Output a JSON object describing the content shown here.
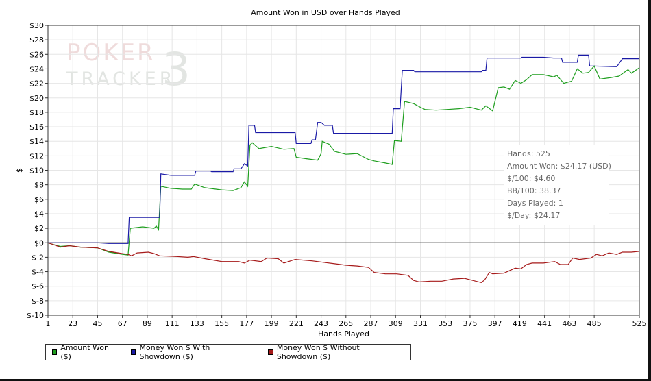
{
  "chart_data": {
    "type": "line",
    "title": "Amount Won in USD over Hands Played",
    "xlabel": "Hands Played",
    "ylabel": "$",
    "xlim": [
      1,
      525
    ],
    "ylim": [
      -10,
      30
    ],
    "x_ticks": [
      1,
      23,
      45,
      67,
      89,
      111,
      133,
      155,
      177,
      199,
      221,
      243,
      265,
      287,
      309,
      331,
      353,
      375,
      397,
      419,
      441,
      463,
      485,
      525
    ],
    "y_ticks": [
      30,
      28,
      26,
      24,
      22,
      20,
      18,
      16,
      14,
      12,
      10,
      8,
      6,
      4,
      2,
      0,
      -2,
      -4,
      -6,
      -8,
      -10
    ],
    "y_tick_labels": [
      "$30",
      "$28",
      "$26",
      "$24",
      "$22",
      "$20",
      "$18",
      "$16",
      "$14",
      "$12",
      "$10",
      "$8",
      "$6",
      "$4",
      "$2",
      "$0",
      "$-2",
      "$-4",
      "$-6",
      "$-8",
      "$-10"
    ],
    "grid": true,
    "legend_position": "bottom-left",
    "series": [
      {
        "name": "Amount Won ($)",
        "color": "#1e9e1e",
        "points": [
          [
            1,
            0
          ],
          [
            5,
            -0.2
          ],
          [
            12,
            -0.5
          ],
          [
            20,
            -0.4
          ],
          [
            30,
            -0.6
          ],
          [
            45,
            -0.7
          ],
          [
            55,
            -1.3
          ],
          [
            67,
            -1.6
          ],
          [
            72,
            -1.7
          ],
          [
            74,
            2.0
          ],
          [
            85,
            2.2
          ],
          [
            95,
            2.0
          ],
          [
            97,
            2.3
          ],
          [
            99,
            1.8
          ],
          [
            101,
            7.8
          ],
          [
            110,
            7.5
          ],
          [
            120,
            7.4
          ],
          [
            128,
            7.4
          ],
          [
            131,
            8.1
          ],
          [
            140,
            7.6
          ],
          [
            155,
            7.3
          ],
          [
            165,
            7.2
          ],
          [
            172,
            7.6
          ],
          [
            175,
            8.4
          ],
          [
            178,
            7.8
          ],
          [
            180,
            13.5
          ],
          [
            182,
            13.8
          ],
          [
            188,
            13.0
          ],
          [
            199,
            13.3
          ],
          [
            210,
            12.9
          ],
          [
            219,
            13.0
          ],
          [
            221,
            11.8
          ],
          [
            230,
            11.6
          ],
          [
            240,
            11.4
          ],
          [
            243,
            12.3
          ],
          [
            244,
            14.0
          ],
          [
            250,
            13.6
          ],
          [
            255,
            12.6
          ],
          [
            265,
            12.2
          ],
          [
            275,
            12.3
          ],
          [
            285,
            11.5
          ],
          [
            290,
            11.3
          ],
          [
            300,
            11.0
          ],
          [
            306,
            10.8
          ],
          [
            308,
            14.1
          ],
          [
            314,
            14.0
          ],
          [
            317,
            19.5
          ],
          [
            325,
            19.2
          ],
          [
            331,
            18.7
          ],
          [
            335,
            18.4
          ],
          [
            345,
            18.3
          ],
          [
            355,
            18.4
          ],
          [
            365,
            18.5
          ],
          [
            375,
            18.7
          ],
          [
            385,
            18.3
          ],
          [
            389,
            18.9
          ],
          [
            395,
            18.2
          ],
          [
            400,
            21.4
          ],
          [
            405,
            21.5
          ],
          [
            410,
            21.2
          ],
          [
            415,
            22.4
          ],
          [
            420,
            22.0
          ],
          [
            425,
            22.5
          ],
          [
            430,
            23.2
          ],
          [
            440,
            23.2
          ],
          [
            449,
            22.9
          ],
          [
            452,
            23.1
          ],
          [
            458,
            22.0
          ],
          [
            465,
            22.3
          ],
          [
            470,
            24.0
          ],
          [
            475,
            23.4
          ],
          [
            480,
            23.5
          ],
          [
            485,
            24.4
          ],
          [
            490,
            22.6
          ],
          [
            500,
            22.8
          ],
          [
            507,
            23.0
          ],
          [
            515,
            23.9
          ],
          [
            518,
            23.4
          ],
          [
            525,
            24.17
          ]
        ]
      },
      {
        "name": "Money Won $ With Showdown ($)",
        "color": "#1a1aa6",
        "points": [
          [
            1,
            0
          ],
          [
            45,
            0
          ],
          [
            55,
            -0.1
          ],
          [
            72,
            -0.1
          ],
          [
            73,
            3.5
          ],
          [
            100,
            3.5
          ],
          [
            101,
            9.5
          ],
          [
            110,
            9.3
          ],
          [
            131,
            9.3
          ],
          [
            132,
            9.9
          ],
          [
            145,
            9.9
          ],
          [
            146,
            9.8
          ],
          [
            165,
            9.8
          ],
          [
            166,
            10.2
          ],
          [
            172,
            10.2
          ],
          [
            175,
            10.9
          ],
          [
            178,
            10.6
          ],
          [
            179,
            16.2
          ],
          [
            184,
            16.2
          ],
          [
            185,
            15.2
          ],
          [
            220,
            15.2
          ],
          [
            221,
            13.7
          ],
          [
            234,
            13.7
          ],
          [
            235,
            14.2
          ],
          [
            238,
            14.2
          ],
          [
            240,
            16.6
          ],
          [
            243,
            16.6
          ],
          [
            246,
            16.2
          ],
          [
            253,
            16.2
          ],
          [
            254,
            15.1
          ],
          [
            306,
            15.1
          ],
          [
            307,
            18.5
          ],
          [
            313,
            18.5
          ],
          [
            315,
            23.8
          ],
          [
            325,
            23.8
          ],
          [
            326,
            23.6
          ],
          [
            385,
            23.6
          ],
          [
            386,
            23.8
          ],
          [
            389,
            23.8
          ],
          [
            390,
            25.5
          ],
          [
            420,
            25.5
          ],
          [
            421,
            25.6
          ],
          [
            440,
            25.6
          ],
          [
            449,
            25.5
          ],
          [
            456,
            25.5
          ],
          [
            457,
            24.9
          ],
          [
            470,
            24.9
          ],
          [
            471,
            25.9
          ],
          [
            480,
            25.9
          ],
          [
            481,
            24.4
          ],
          [
            505,
            24.3
          ],
          [
            510,
            25.4
          ],
          [
            525,
            25.4
          ]
        ]
      },
      {
        "name": "Money Won $ Without Showdown ($)",
        "color": "#a61a1a",
        "points": [
          [
            1,
            0
          ],
          [
            5,
            -0.2
          ],
          [
            12,
            -0.6
          ],
          [
            20,
            -0.4
          ],
          [
            30,
            -0.6
          ],
          [
            45,
            -0.7
          ],
          [
            55,
            -1.2
          ],
          [
            67,
            -1.5
          ],
          [
            72,
            -1.6
          ],
          [
            75,
            -1.8
          ],
          [
            80,
            -1.4
          ],
          [
            90,
            -1.3
          ],
          [
            95,
            -1.5
          ],
          [
            100,
            -1.8
          ],
          [
            115,
            -1.9
          ],
          [
            125,
            -2.0
          ],
          [
            130,
            -1.9
          ],
          [
            140,
            -2.2
          ],
          [
            155,
            -2.6
          ],
          [
            170,
            -2.6
          ],
          [
            175,
            -2.8
          ],
          [
            180,
            -2.4
          ],
          [
            190,
            -2.6
          ],
          [
            195,
            -2.1
          ],
          [
            205,
            -2.2
          ],
          [
            210,
            -2.8
          ],
          [
            220,
            -2.3
          ],
          [
            235,
            -2.5
          ],
          [
            245,
            -2.7
          ],
          [
            255,
            -2.9
          ],
          [
            265,
            -3.1
          ],
          [
            275,
            -3.2
          ],
          [
            285,
            -3.4
          ],
          [
            290,
            -4.1
          ],
          [
            300,
            -4.3
          ],
          [
            310,
            -4.3
          ],
          [
            320,
            -4.5
          ],
          [
            325,
            -5.2
          ],
          [
            330,
            -5.4
          ],
          [
            340,
            -5.3
          ],
          [
            350,
            -5.3
          ],
          [
            360,
            -5.0
          ],
          [
            370,
            -4.9
          ],
          [
            380,
            -5.3
          ],
          [
            385,
            -5.5
          ],
          [
            388,
            -5.1
          ],
          [
            392,
            -4.1
          ],
          [
            395,
            -4.3
          ],
          [
            405,
            -4.2
          ],
          [
            415,
            -3.5
          ],
          [
            420,
            -3.6
          ],
          [
            425,
            -3.0
          ],
          [
            430,
            -2.8
          ],
          [
            440,
            -2.8
          ],
          [
            450,
            -2.6
          ],
          [
            455,
            -3.0
          ],
          [
            462,
            -3.0
          ],
          [
            466,
            -2.1
          ],
          [
            472,
            -2.3
          ],
          [
            482,
            -2.1
          ],
          [
            487,
            -1.6
          ],
          [
            492,
            -1.8
          ],
          [
            498,
            -1.4
          ],
          [
            505,
            -1.6
          ],
          [
            510,
            -1.3
          ],
          [
            518,
            -1.3
          ],
          [
            525,
            -1.2
          ]
        ]
      }
    ]
  },
  "stats": {
    "hands": "Hands: 525",
    "amount_won": "Amount Won: $24.17 (USD)",
    "per_100": "$/100: $4.60",
    "bb_100": "BB/100: 38.37",
    "days_played": "Days Played: 1",
    "per_day": "$/Day: $24.17"
  },
  "watermark": {
    "line1": "POKER",
    "line2": "TRACKER",
    "mark": "3"
  },
  "legend": [
    {
      "label": "Amount Won ($)",
      "color": "#1e9e1e"
    },
    {
      "label": "Money Won $ With Showdown ($)",
      "color": "#1a1aa6"
    },
    {
      "label": "Money Won $ Without Showdown ($)",
      "color": "#a61a1a"
    }
  ]
}
